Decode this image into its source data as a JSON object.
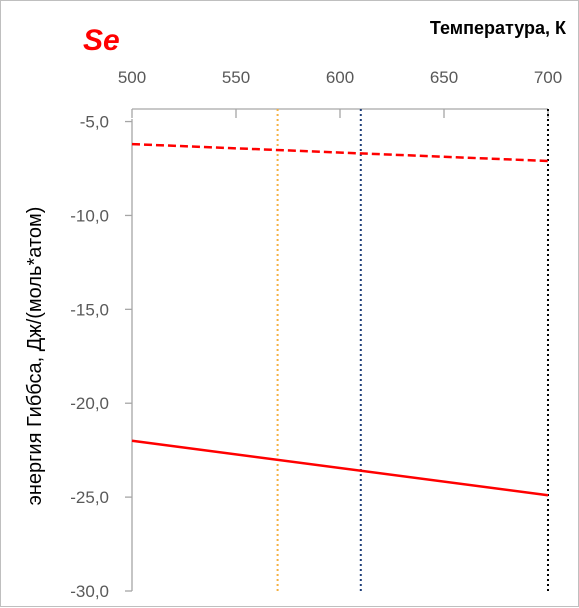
{
  "chart_data": {
    "type": "line",
    "title": "Se",
    "xlabel": "Температура, К",
    "ylabel": "энергия Гиббса, Дж/(моль*атом)",
    "x_axis_position": "top",
    "xlim": [
      500,
      700
    ],
    "ylim": [
      -30,
      -3
    ],
    "x_ticks": [
      "500",
      "550",
      "600",
      "650",
      "700"
    ],
    "y_ticks": [
      "-5,0",
      "-10,0",
      "-15,0",
      "-20,0",
      "-25,0",
      "-30,0"
    ],
    "grid": false,
    "legend": "none",
    "series": [
      {
        "style": "dashed",
        "color": "#ff0000",
        "x": [
          500,
          700
        ],
        "y": [
          -6.2,
          -7.1
        ]
      },
      {
        "style": "solid",
        "color": "#ff0000",
        "x": [
          500,
          700
        ],
        "y": [
          -22.0,
          -24.9
        ]
      }
    ],
    "vertical_lines": [
      {
        "x": 570,
        "color": "#f5b041",
        "style": "dotted"
      },
      {
        "x": 610,
        "color": "#1f3f7a",
        "style": "dotted"
      },
      {
        "x": 700,
        "color": "#000000",
        "style": "dotted"
      }
    ],
    "colors": {
      "title": "#ff0000",
      "axis": "#a6a6a6",
      "tick_text": "#595959"
    }
  }
}
